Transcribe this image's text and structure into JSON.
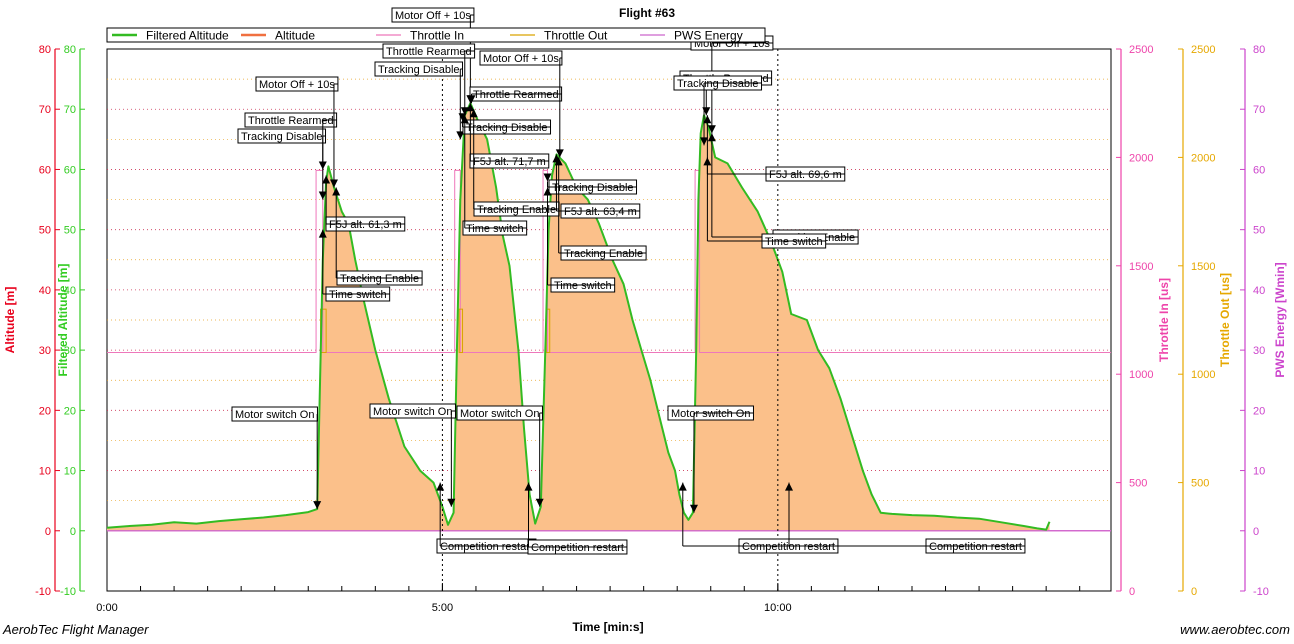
{
  "chart_data": {
    "type": "area",
    "title": "Flight #63",
    "xlabel": "Time [min:s]",
    "footer_left": "AerobTec Flight Manager",
    "footer_right": "www.aerobtec.com",
    "xlim_seconds": [
      0,
      898
    ],
    "x_ticks": [
      {
        "t": 0,
        "label": "0:00"
      },
      {
        "t": 300,
        "label": "5:00"
      },
      {
        "t": 600,
        "label": "10:00"
      }
    ],
    "axes": [
      {
        "id": "alt",
        "name": "Altitude [m]",
        "color": "#e8001c",
        "ylim": [
          -10,
          80
        ],
        "ticks": [
          -10,
          0,
          10,
          20,
          30,
          40,
          50,
          60,
          70,
          80
        ]
      },
      {
        "id": "falt",
        "name": "Filtered Altitude [m]",
        "color": "#33cc22",
        "ylim": [
          -10,
          80
        ],
        "ticks": [
          -10,
          0,
          10,
          20,
          30,
          40,
          50,
          60,
          70,
          80
        ]
      },
      {
        "id": "thin",
        "name": "Throttle In [us]",
        "color": "#ee44aa",
        "ylim": [
          0,
          2500
        ],
        "ticks": [
          0,
          500,
          1000,
          1500,
          2000,
          2500
        ]
      },
      {
        "id": "thout",
        "name": "Throttle Out [us]",
        "color": "#e6a800",
        "ylim": [
          0,
          2500
        ],
        "ticks": [
          0,
          500,
          1000,
          1500,
          2000,
          2500
        ]
      },
      {
        "id": "pws",
        "name": "PWS Energy [Wmin]",
        "color": "#cc44cc",
        "ylim": [
          -10,
          80
        ],
        "ticks": [
          -10,
          0,
          10,
          20,
          30,
          40,
          50,
          60,
          70,
          80
        ]
      }
    ],
    "legend": {
      "placement": "top",
      "entries": [
        {
          "name": "Filtered Altitude",
          "color": "#33bb22"
        },
        {
          "name": "Altitude",
          "color": "#f07040"
        },
        {
          "name": "Throttle In",
          "color": "#ee77bb"
        },
        {
          "name": "Throttle Out",
          "color": "#d9a400"
        },
        {
          "name": "PWS Energy",
          "color": "#cc66cc"
        }
      ]
    },
    "grid": true,
    "series": [
      {
        "name": "Filtered Altitude",
        "axis": "alt",
        "points": [
          [
            0,
            0.5
          ],
          [
            20,
            0.8
          ],
          [
            40,
            1
          ],
          [
            60,
            1.4
          ],
          [
            80,
            1.2
          ],
          [
            100,
            1.6
          ],
          [
            120,
            1.9
          ],
          [
            140,
            2.2
          ],
          [
            160,
            2.6
          ],
          [
            180,
            3.1
          ],
          [
            188,
            3.6
          ],
          [
            190,
            20
          ],
          [
            193,
            45
          ],
          [
            196,
            58
          ],
          [
            198,
            60.5
          ],
          [
            203,
            57
          ],
          [
            210,
            53
          ],
          [
            216,
            51
          ],
          [
            222,
            45
          ],
          [
            230,
            38
          ],
          [
            240,
            30
          ],
          [
            252,
            22
          ],
          [
            266,
            14
          ],
          [
            280,
            10
          ],
          [
            292,
            8
          ],
          [
            300,
            4
          ],
          [
            305,
            1
          ],
          [
            310,
            3
          ],
          [
            313,
            30
          ],
          [
            316,
            55
          ],
          [
            320,
            69
          ],
          [
            325,
            71
          ],
          [
            332,
            68
          ],
          [
            340,
            65
          ],
          [
            348,
            57
          ],
          [
            354,
            49
          ],
          [
            360,
            44
          ],
          [
            368,
            30
          ],
          [
            373,
            17
          ],
          [
            378,
            6
          ],
          [
            383,
            1.2
          ],
          [
            388,
            4
          ],
          [
            392,
            30
          ],
          [
            395,
            50
          ],
          [
            398,
            59
          ],
          [
            402,
            62.5
          ],
          [
            410,
            61
          ],
          [
            420,
            57
          ],
          [
            430,
            55
          ],
          [
            440,
            51
          ],
          [
            452,
            45
          ],
          [
            462,
            41
          ],
          [
            470,
            35
          ],
          [
            478,
            30
          ],
          [
            486,
            25
          ],
          [
            494,
            19
          ],
          [
            502,
            13
          ],
          [
            508,
            10
          ],
          [
            512,
            6
          ],
          [
            516,
            3
          ],
          [
            520,
            1.8
          ],
          [
            524,
            3
          ],
          [
            527,
            30
          ],
          [
            529,
            55
          ],
          [
            531,
            66
          ],
          [
            534,
            69
          ],
          [
            538,
            67
          ],
          [
            544,
            62
          ],
          [
            555,
            61
          ],
          [
            568,
            57
          ],
          [
            582,
            53
          ],
          [
            594,
            48
          ],
          [
            604,
            43
          ],
          [
            612,
            36
          ],
          [
            626,
            35
          ],
          [
            636,
            30
          ],
          [
            646,
            27
          ],
          [
            656,
            22
          ],
          [
            666,
            16
          ],
          [
            676,
            10
          ],
          [
            684,
            6
          ],
          [
            692,
            3
          ],
          [
            702,
            2.8
          ],
          [
            720,
            2.6
          ],
          [
            740,
            2.5
          ],
          [
            760,
            2.2
          ],
          [
            780,
            2
          ],
          [
            800,
            1.4
          ],
          [
            820,
            0.8
          ],
          [
            832,
            0.4
          ],
          [
            840,
            0.2
          ],
          [
            843,
            1.5
          ]
        ]
      },
      {
        "name": "Altitude",
        "axis": "alt",
        "fill": "area"
      },
      {
        "name": "Throttle In",
        "axis": "thin",
        "baseline_us": 1100,
        "pulse_us": 1940,
        "pulses_seconds": [
          [
            187,
            193
          ],
          [
            311,
            316
          ],
          [
            390,
            394
          ],
          [
            526,
            530
          ]
        ]
      },
      {
        "name": "Throttle Out",
        "axis": "thout",
        "baseline_us": 1100,
        "pulses_seconds": [
          [
            191,
            196
          ],
          [
            315,
            318
          ],
          [
            393,
            396
          ]
        ]
      },
      {
        "name": "PWS Energy",
        "axis": "pws",
        "baseline": 0
      }
    ],
    "event_lines_seconds": [
      300,
      600
    ],
    "annotations": [
      {
        "text": "Motor switch On",
        "t": 188,
        "v": 3.6,
        "lx": 232,
        "ly": 407,
        "dir": "down"
      },
      {
        "text": "Tracking Disable",
        "t": 193,
        "v": 60,
        "lx": 238,
        "ly": 129,
        "dir": "up"
      },
      {
        "text": "Throttle Rearmed",
        "t": 193,
        "v": 55,
        "lx": 245,
        "ly": 113,
        "dir": "down"
      },
      {
        "text": "Motor Off + 10s",
        "t": 203,
        "v": 57,
        "lx": 256,
        "ly": 77,
        "dir": "down"
      },
      {
        "text": "F5J alt. 61,3 m",
        "t": 196,
        "v": 59,
        "lx": 326,
        "ly": 217,
        "dir": "up"
      },
      {
        "text": "Tracking Enable",
        "t": 205,
        "v": 57,
        "lx": 337,
        "ly": 271,
        "dir": "up"
      },
      {
        "text": "Time switch",
        "t": 193,
        "v": 50,
        "lx": 326,
        "ly": 287,
        "dir": "up"
      },
      {
        "text": "Motor switch On",
        "t": 308,
        "v": 4,
        "lx": 370,
        "ly": 404,
        "dir": "down"
      },
      {
        "text": "Competition restart",
        "t": 298,
        "v": 8,
        "lx": 437,
        "ly": 539,
        "dir": "up"
      },
      {
        "text": "Motor Off + 10s",
        "t": 325,
        "v": 71,
        "lx": 392,
        "ly": 8,
        "dir": "down"
      },
      {
        "text": "Throttle Rearmed",
        "t": 320,
        "v": 69,
        "lx": 383,
        "ly": 44,
        "dir": "down"
      },
      {
        "text": "Tracking Disable",
        "t": 316,
        "v": 65,
        "lx": 375,
        "ly": 62,
        "dir": "up"
      },
      {
        "text": "Throttle Rearmed",
        "t": 326,
        "v": 71,
        "lx": 470,
        "ly": 87,
        "dir": "up"
      },
      {
        "text": "Tracking Disable",
        "t": 318,
        "v": 68,
        "lx": 463,
        "ly": 120,
        "dir": "up"
      },
      {
        "text": "F5J alt. 71,7 m",
        "t": 325,
        "v": 71,
        "lx": 470,
        "ly": 154,
        "dir": "up"
      },
      {
        "text": "Tracking Enable",
        "t": 328,
        "v": 70,
        "lx": 474,
        "ly": 202,
        "dir": "up"
      },
      {
        "text": "Time switch",
        "t": 320,
        "v": 69,
        "lx": 463,
        "ly": 221,
        "dir": "up"
      },
      {
        "text": "Motor switch On",
        "t": 387,
        "v": 4,
        "lx": 457,
        "ly": 406,
        "dir": "down"
      },
      {
        "text": "Competition restart",
        "t": 377,
        "v": 8,
        "lx": 528,
        "ly": 540,
        "dir": "up"
      },
      {
        "text": "Motor Off + 10s",
        "t": 405,
        "v": 62,
        "lx": 480,
        "ly": 51,
        "dir": "down"
      },
      {
        "text": "Tracking Disable",
        "t": 394,
        "v": 58,
        "lx": 549,
        "ly": 180,
        "dir": "up"
      },
      {
        "text": "F5J alt. 63,4 m",
        "t": 402,
        "v": 62.5,
        "lx": 561,
        "ly": 204,
        "dir": "up"
      },
      {
        "text": "Tracking Enable",
        "t": 404,
        "v": 62,
        "lx": 561,
        "ly": 246,
        "dir": "up"
      },
      {
        "text": "Time switch",
        "t": 394,
        "v": 57,
        "lx": 551,
        "ly": 278,
        "dir": "up"
      },
      {
        "text": "Motor switch On",
        "t": 525,
        "v": 3,
        "lx": 668,
        "ly": 406,
        "dir": "down"
      },
      {
        "text": "Competition restart",
        "t": 515,
        "v": 8,
        "lx": 739,
        "ly": 539,
        "dir": "up"
      },
      {
        "text": "Motor Off + 10s",
        "t": 541,
        "v": 66,
        "lx": 691,
        "ly": 36,
        "dir": "down"
      },
      {
        "text": "Throttle Rearmed",
        "t": 536,
        "v": 69,
        "lx": 680,
        "ly": 71,
        "dir": "down"
      },
      {
        "text": "Tracking Disable",
        "t": 534,
        "v": 64,
        "lx": 674,
        "ly": 76,
        "dir": "up"
      },
      {
        "text": "F5J alt. 69,6 m",
        "t": 537,
        "v": 69,
        "lx": 766,
        "ly": 167,
        "dir": "up"
      },
      {
        "text": "Tracking Enable",
        "t": 541,
        "v": 66,
        "lx": 773,
        "ly": 230,
        "dir": "up"
      },
      {
        "text": "Time switch",
        "t": 537,
        "v": 62,
        "lx": 762,
        "ly": 234,
        "dir": "up"
      },
      {
        "text": "Competition restart",
        "t": 610,
        "v": 8,
        "lx": 926,
        "ly": 539,
        "dir": "up"
      }
    ]
  }
}
